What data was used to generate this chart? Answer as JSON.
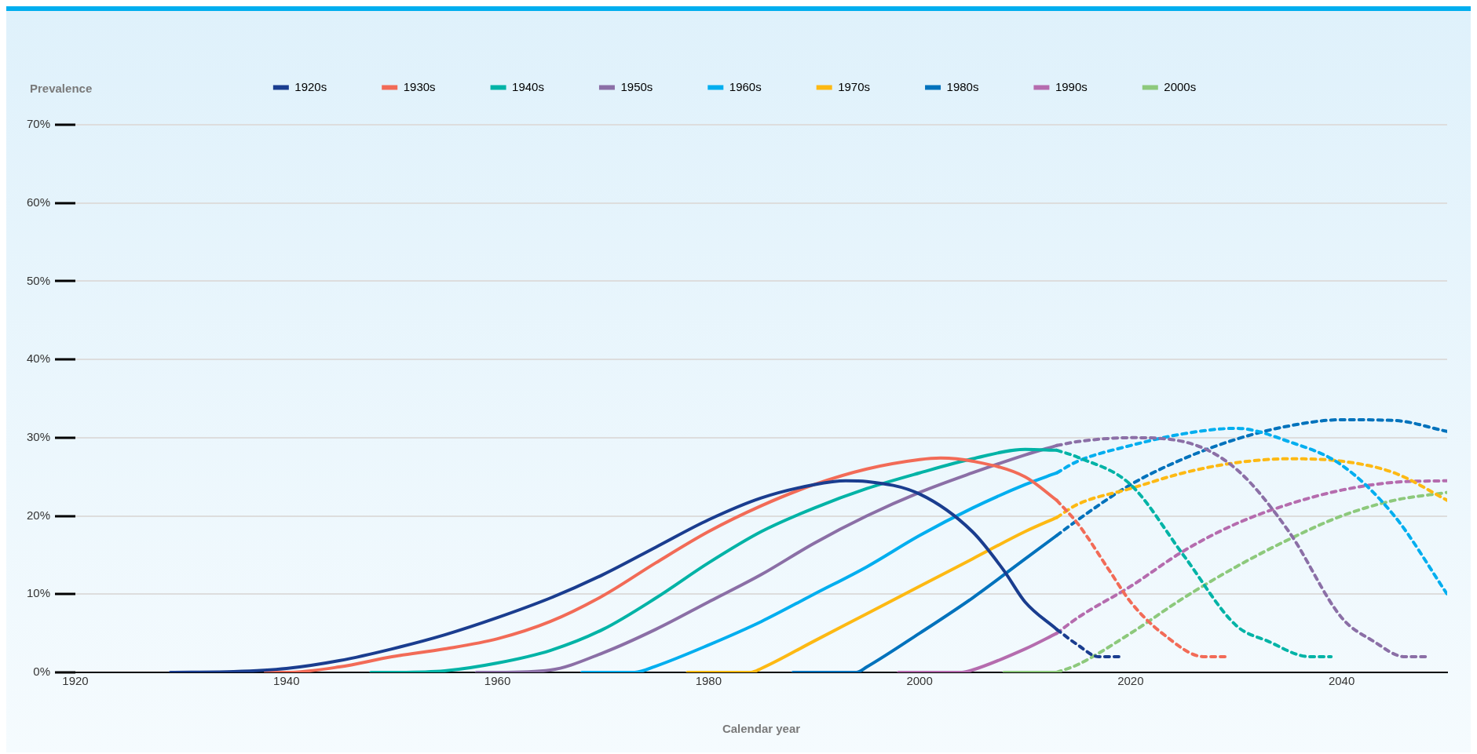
{
  "chart_data": {
    "type": "line",
    "xlabel": "Calendar year",
    "ylabel": "Prevalence",
    "xlim": [
      1920,
      2050
    ],
    "xticks": [
      1920,
      1940,
      1960,
      1980,
      2000,
      2020,
      2040
    ],
    "ylim": [
      0,
      70
    ],
    "yticks": [
      {
        "value": 0,
        "label": "0%"
      },
      {
        "value": 10,
        "label": "10%"
      },
      {
        "value": 20,
        "label": "20%"
      },
      {
        "value": 30,
        "label": "30%"
      },
      {
        "value": 40,
        "label": "40%"
      },
      {
        "value": 50,
        "label": "50%"
      },
      {
        "value": 60,
        "label": "60%"
      },
      {
        "value": 70,
        "label": "70%"
      }
    ],
    "grid": "y",
    "legend": "top",
    "marker": "none",
    "series": [
      {
        "name": "1920s",
        "color": "#1a3d8f",
        "line_style": "solid",
        "x": [
          1929,
          1935,
          1940,
          1945,
          1950,
          1955,
          1960,
          1965,
          1970,
          1975,
          1980,
          1985,
          1990,
          1993,
          1995,
          2000,
          2005,
          2008,
          2010,
          2013
        ],
        "values": [
          0,
          0.1,
          0.5,
          1.5,
          3,
          4.8,
          7,
          9.5,
          12.5,
          16,
          19.5,
          22.3,
          24,
          24.5,
          24.4,
          22.8,
          18,
          13,
          9,
          5.5
        ]
      },
      {
        "color": "#1a3d8f",
        "line_style": "dashed",
        "x": [
          2013,
          2015,
          2017,
          2019
        ],
        "values": [
          5.5,
          3.5,
          2,
          2
        ]
      },
      {
        "name": "1930s",
        "color": "#f26b57",
        "line_style": "solid",
        "x": [
          1938,
          1940,
          1945,
          1950,
          1955,
          1960,
          1965,
          1970,
          1975,
          1980,
          1985,
          1990,
          1995,
          2000,
          2002,
          2005,
          2010,
          2013
        ],
        "values": [
          0,
          0,
          0.7,
          2,
          3,
          4.3,
          6.5,
          9.8,
          14,
          18,
          21.3,
          24,
          26,
          27.2,
          27.4,
          27,
          25,
          22
        ]
      },
      {
        "color": "#f26b57",
        "line_style": "dashed",
        "x": [
          2013,
          2015,
          2018,
          2020,
          2023,
          2027,
          2029
        ],
        "values": [
          22,
          19,
          13,
          9,
          5,
          2,
          2
        ]
      },
      {
        "name": "1940s",
        "color": "#00b3a6",
        "line_style": "solid",
        "x": [
          1948,
          1950,
          1955,
          1960,
          1965,
          1970,
          1975,
          1980,
          1985,
          1990,
          1995,
          2000,
          2005,
          2010,
          2013
        ],
        "values": [
          0,
          0,
          0.2,
          1.2,
          2.8,
          5.5,
          9.5,
          14,
          18,
          21,
          23.5,
          25.5,
          27.3,
          28.5,
          28.4
        ]
      },
      {
        "color": "#00b3a6",
        "line_style": "dashed",
        "x": [
          2013,
          2015,
          2020,
          2025,
          2030,
          2033,
          2037,
          2039
        ],
        "values": [
          28.4,
          27.5,
          24,
          15,
          6,
          4,
          2,
          2
        ]
      },
      {
        "name": "1950s",
        "color": "#8b6fa6",
        "line_style": "solid",
        "x": [
          1958,
          1960,
          1965,
          1970,
          1975,
          1980,
          1985,
          1990,
          1995,
          2000,
          2005,
          2010,
          2013
        ],
        "values": [
          0,
          0,
          0.3,
          2.5,
          5.5,
          9,
          12.5,
          16.5,
          20,
          23,
          25.5,
          27.8,
          29
        ]
      },
      {
        "color": "#8b6fa6",
        "line_style": "dashed",
        "x": [
          2013,
          2015,
          2020,
          2025,
          2030,
          2035,
          2040,
          2043,
          2046,
          2048
        ],
        "values": [
          29,
          29.5,
          30,
          29.5,
          26,
          18,
          7,
          4,
          2,
          2
        ]
      },
      {
        "name": "1960s",
        "color": "#00aeef",
        "line_style": "solid",
        "x": [
          1968,
          1970,
          1973,
          1975,
          1980,
          1985,
          1990,
          1995,
          2000,
          2005,
          2010,
          2013
        ],
        "values": [
          0,
          0,
          0,
          0.8,
          3.5,
          6.5,
          10,
          13.5,
          17.5,
          21,
          24,
          25.5
        ]
      },
      {
        "color": "#00aeef",
        "line_style": "dashed",
        "x": [
          2013,
          2015,
          2020,
          2025,
          2030,
          2035,
          2040,
          2045,
          2050
        ],
        "values": [
          25.5,
          27,
          29,
          30.5,
          31.2,
          29.5,
          26.5,
          20,
          10
        ]
      },
      {
        "name": "1970s",
        "color": "#fdb913",
        "line_style": "solid",
        "x": [
          1978,
          1980,
          1984,
          1985,
          1990,
          1995,
          2000,
          2005,
          2010,
          2013
        ],
        "values": [
          0,
          0,
          0,
          0.5,
          4,
          7.5,
          11,
          14.5,
          18,
          19.8
        ]
      },
      {
        "color": "#fdb913",
        "line_style": "dashed",
        "x": [
          2013,
          2015,
          2020,
          2025,
          2030,
          2035,
          2040,
          2045,
          2050
        ],
        "values": [
          19.8,
          21.5,
          23.5,
          25.5,
          26.8,
          27.3,
          27,
          25.5,
          22
        ]
      },
      {
        "name": "1980s",
        "color": "#0072bc",
        "line_style": "solid",
        "x": [
          1988,
          1990,
          1994,
          1995,
          2000,
          2005,
          2010,
          2013
        ],
        "values": [
          0,
          0,
          0,
          0.7,
          5,
          9.5,
          14.5,
          17.5
        ]
      },
      {
        "color": "#0072bc",
        "line_style": "dashed",
        "x": [
          2013,
          2015,
          2020,
          2025,
          2030,
          2035,
          2040,
          2045,
          2050
        ],
        "values": [
          17.5,
          19.5,
          24,
          27.3,
          29.8,
          31.5,
          32.3,
          32.2,
          30.8
        ]
      },
      {
        "name": "1990s",
        "color": "#b56cae",
        "line_style": "solid",
        "x": [
          1998,
          2000,
          2004,
          2005,
          2010,
          2013
        ],
        "values": [
          0,
          0,
          0,
          0.3,
          3,
          5
        ]
      },
      {
        "color": "#b56cae",
        "line_style": "dashed",
        "x": [
          2013,
          2015,
          2020,
          2025,
          2030,
          2035,
          2040,
          2045,
          2050
        ],
        "values": [
          5,
          7,
          11,
          15.5,
          19,
          21.5,
          23.3,
          24.3,
          24.5
        ]
      },
      {
        "name": "2000s",
        "color": "#8dc97c",
        "line_style": "solid",
        "x": [
          2008,
          2013
        ],
        "values": [
          0,
          0
        ]
      },
      {
        "color": "#8dc97c",
        "line_style": "dashed",
        "x": [
          2013,
          2015,
          2020,
          2025,
          2030,
          2035,
          2040,
          2045,
          2050
        ],
        "values": [
          0,
          1,
          5,
          9.5,
          13.5,
          17,
          20,
          22,
          23
        ]
      }
    ]
  }
}
